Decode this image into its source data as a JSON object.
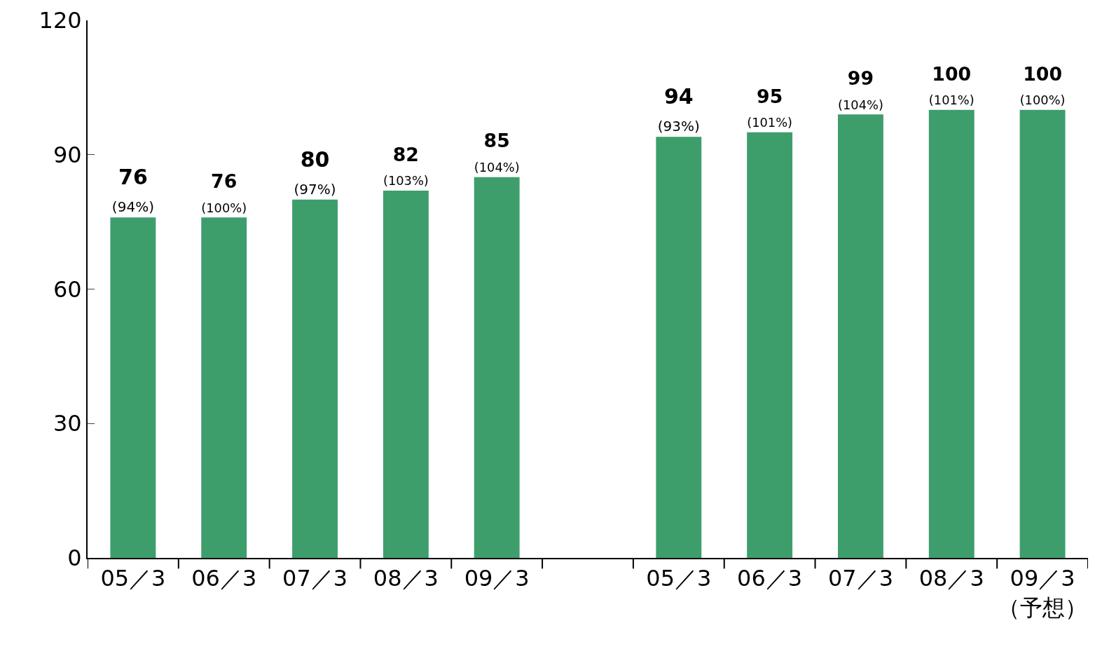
{
  "chart_data": {
    "type": "bar",
    "categories": [
      "05／3",
      "06／3",
      "07／3",
      "08／3",
      "09／3",
      null,
      "05／3",
      "06／3",
      "07／3",
      "08／3",
      "09／3\n（予想）"
    ],
    "values": [
      76,
      76,
      80,
      82,
      85,
      null,
      94,
      95,
      99,
      100,
      100
    ],
    "value_labels": [
      "76\n(94%)",
      "76\n(100%)",
      "80\n(97%)",
      "82\n(103%)",
      "85\n(104%)",
      null,
      "94\n(93%)",
      "95\n(101%)",
      "99\n(104%)",
      "100\n(101%)",
      "100\n(100%)"
    ],
    "color": "#3d9e6c",
    "ylim": [
      0,
      120
    ],
    "yticks": [
      0,
      30,
      60,
      90,
      120
    ],
    "grid": false,
    "legend": false
  }
}
